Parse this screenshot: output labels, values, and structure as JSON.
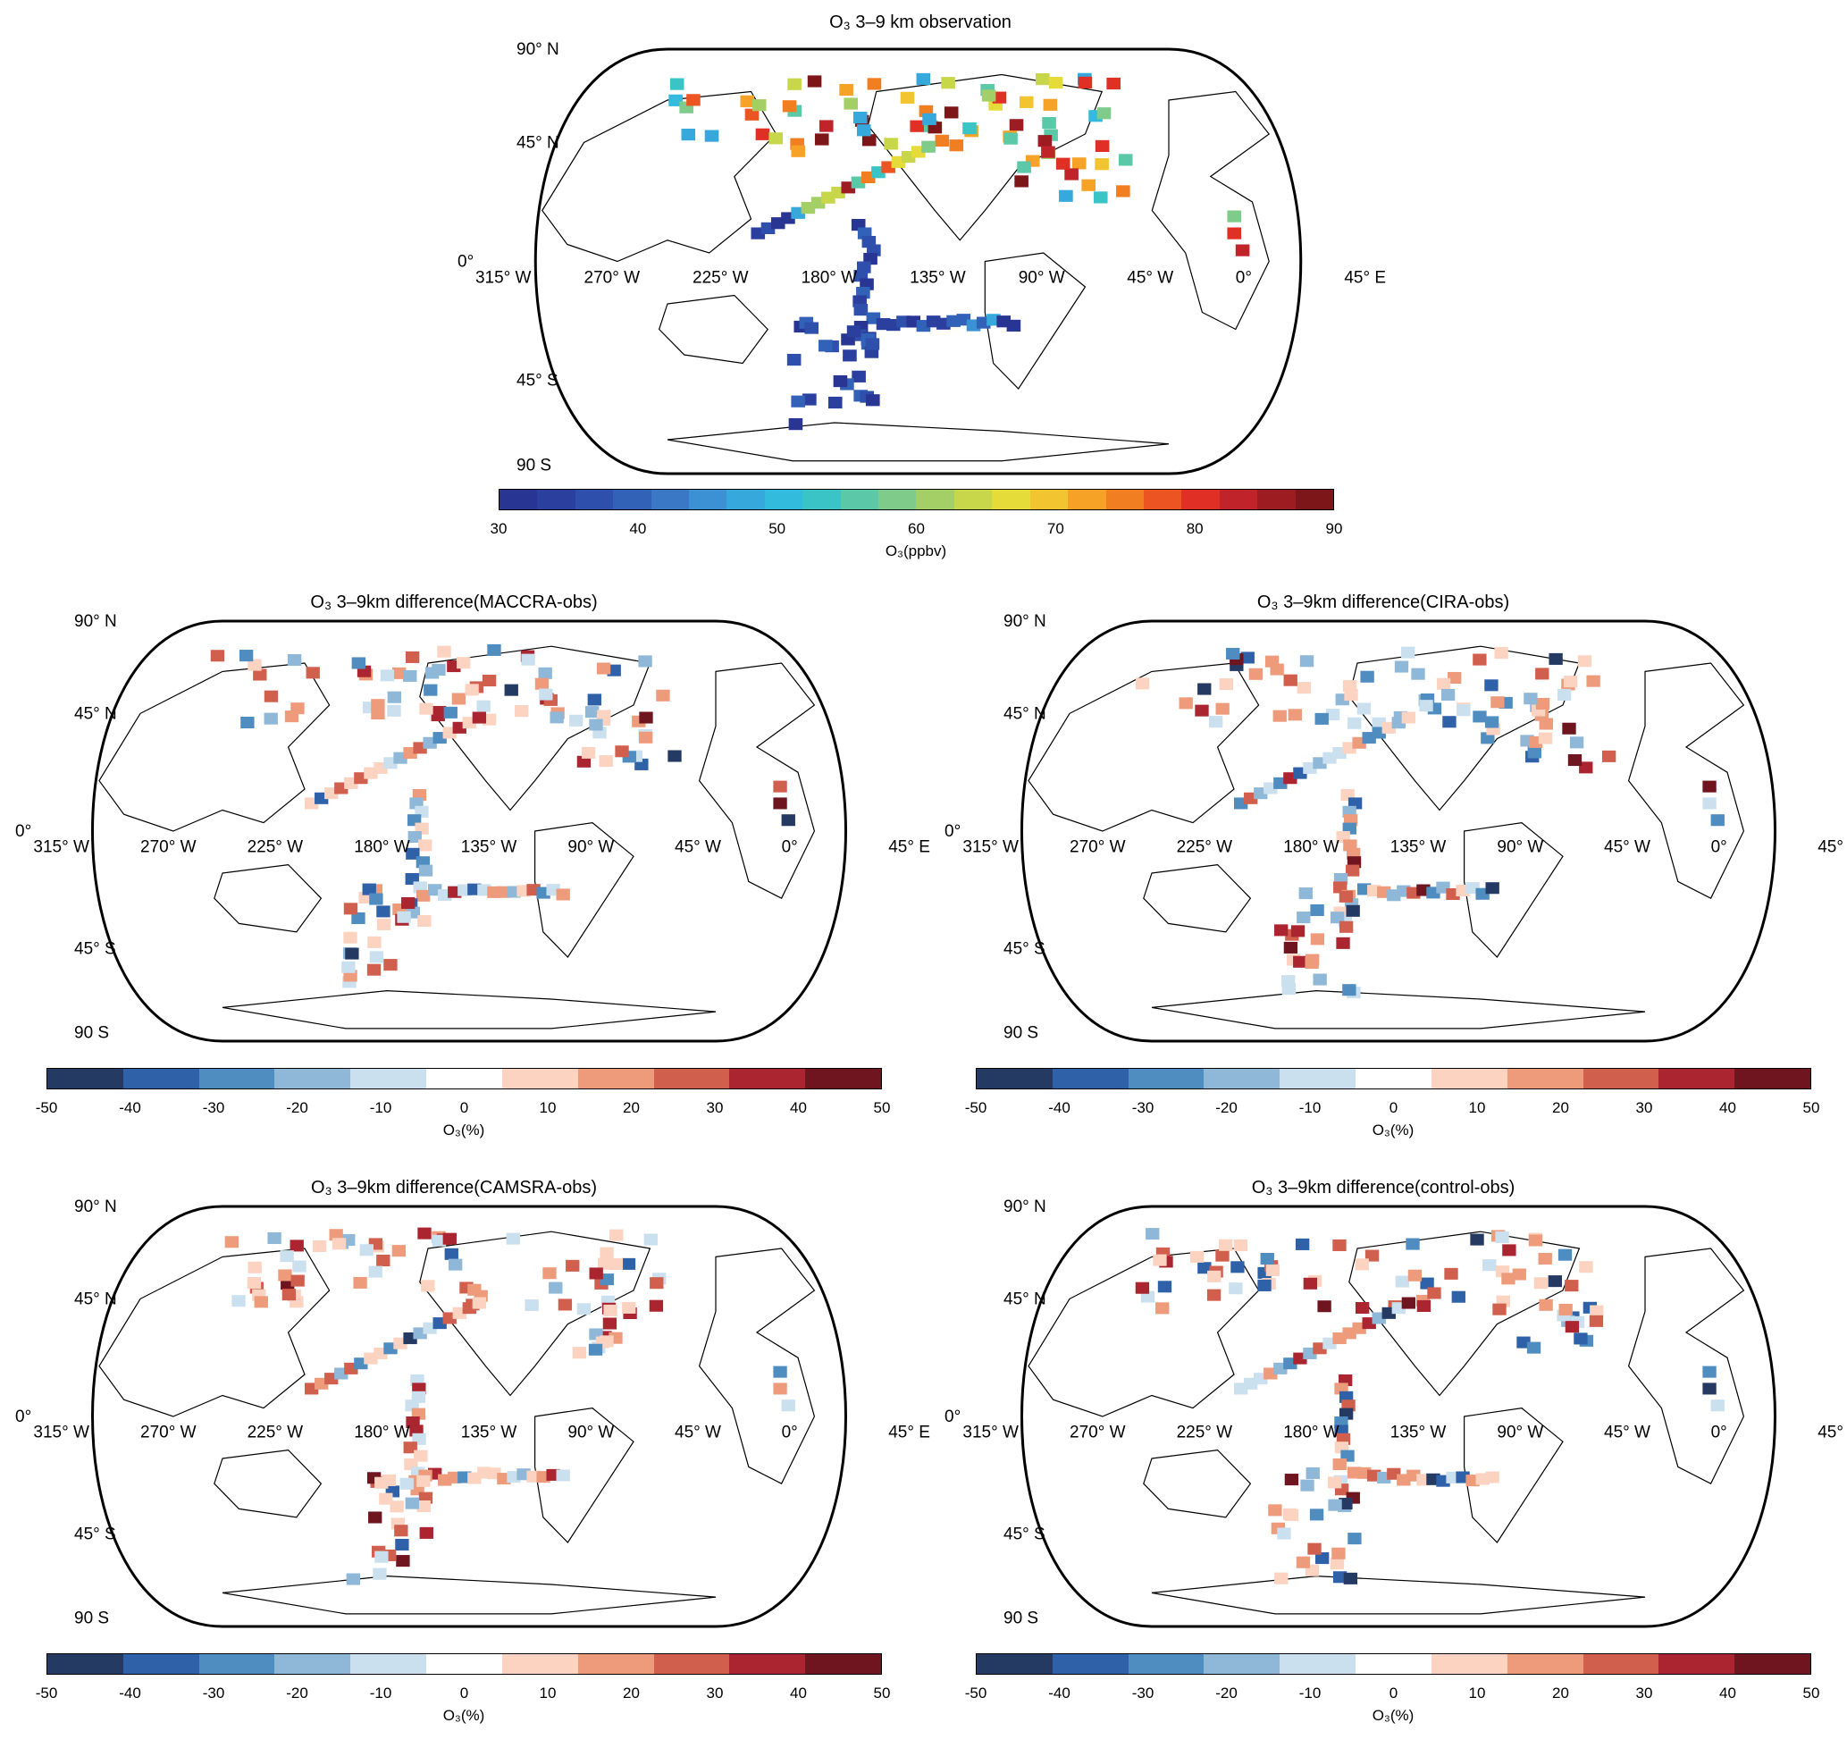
{
  "figure": {
    "top": {
      "title": "O₃ 3–9 km observation",
      "colorbar": {
        "ticks": [
          "30",
          "40",
          "50",
          "60",
          "70",
          "80",
          "90"
        ],
        "label": "O₃(ppbv)",
        "range": [
          30,
          90
        ],
        "colors": [
          "#283593",
          "#2b3f9f",
          "#2e4fab",
          "#3261b8",
          "#3a78c6",
          "#3b91d3",
          "#36a8dc",
          "#33bbdd",
          "#3ac4c6",
          "#5bc8a8",
          "#7ecb8a",
          "#a3cf66",
          "#c8d64a",
          "#e5dc3a",
          "#f2c42f",
          "#f5a227",
          "#f27e22",
          "#ec5521",
          "#e02f24",
          "#c1232b",
          "#9c1c22",
          "#7d1618"
        ]
      },
      "data": {
        "description": "gridded O3 observation values (ppbv) along flight tracks",
        "values_ppbv": {
          "tropical_pacific_tracks": 33,
          "southern_pacific_tracks": 38,
          "north_atlantic_arctic": 65,
          "hotspots": 85
        }
      }
    },
    "panels": [
      {
        "id": "maccra",
        "title": "O₃ 3–9km difference(MACCRA-obs)",
        "colorbar_label": "O₃(%)"
      },
      {
        "id": "cira",
        "title": "O₃ 3–9km difference(CIRA-obs)",
        "colorbar_label": "O₃(%)"
      },
      {
        "id": "camsra",
        "title": "O₃ 3–9km difference(CAMSRA-obs)",
        "colorbar_label": "O₃(%)"
      },
      {
        "id": "control",
        "title": "O₃ 3–9km difference(control-obs)",
        "colorbar_label": "O₃(%)"
      }
    ],
    "diff_colorbar": {
      "ticks": [
        "-50",
        "-40",
        "-30",
        "-20",
        "-10",
        "0",
        "10",
        "20",
        "30",
        "40",
        "50"
      ],
      "range": [
        -50,
        50
      ],
      "colors": [
        "#253a63",
        "#2f61a8",
        "#4f8cc0",
        "#8fb8d8",
        "#cbe0ee",
        "#ffffff",
        "#fbd3c0",
        "#ee9b7c",
        "#d15f4d",
        "#ab2530",
        "#6f1520"
      ]
    },
    "map_labels": {
      "lat": [
        "90° N",
        "45° N",
        "0°",
        "45° S",
        "90 S"
      ],
      "lon": [
        "315° W",
        "270° W",
        "225° W",
        "180° W",
        "135° W",
        "90° W",
        "45° W",
        "0°",
        "45° E"
      ]
    }
  }
}
